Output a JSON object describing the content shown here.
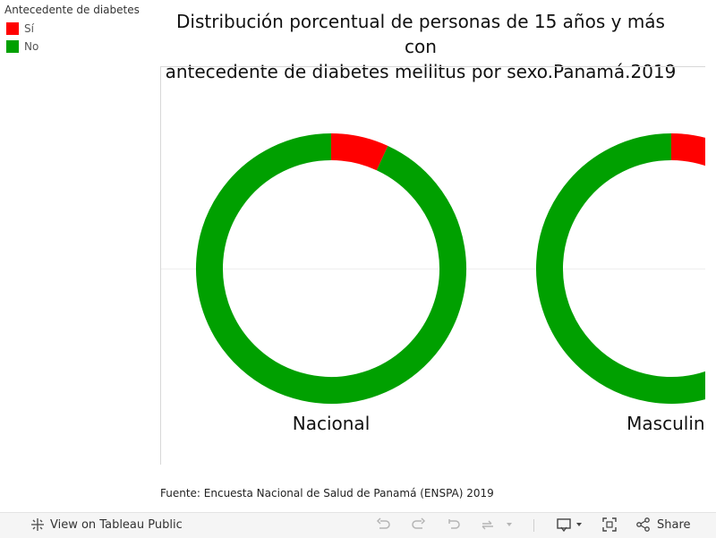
{
  "legend": {
    "title": "Antecedente de diabetes",
    "items": [
      {
        "label": "Sí",
        "color": "#ff0000"
      },
      {
        "label": "No",
        "color": "#00a000"
      }
    ]
  },
  "title_line1": "Distribución porcentual de personas de 15 años y más con",
  "title_line2": "antecedente de diabetes mellitus por sexo.Panamá.2019",
  "source": "Fuente: Encuesta Nacional de Salud de Panamá (ENSPA) 2019",
  "chart_data": {
    "type": "donut",
    "title": "Distribución porcentual de personas de 15 años y más con antecedente de diabetes mellitus por sexo.Panamá.2019",
    "series": [
      "Sí",
      "No"
    ],
    "colors": {
      "Sí": "#ff0000",
      "No": "#00a000"
    },
    "categories": [
      "Nacional",
      "Masculino"
    ],
    "displayed_labels": [
      "Nacional",
      "Masculino"
    ],
    "values": [
      {
        "category": "Nacional",
        "Sí": 6.9,
        "No": 93.1
      },
      {
        "category": "Masculino",
        "Sí": 5.5,
        "No": 94.5
      }
    ]
  },
  "toolbar": {
    "view_label": "View on Tableau Public",
    "share_label": "Share",
    "icons": [
      "tableau-logo-icon",
      "undo-icon",
      "redo-icon",
      "revert-icon",
      "refresh-icon",
      "dropdown-icon",
      "download-icon",
      "fullscreen-icon",
      "share-icon"
    ]
  }
}
